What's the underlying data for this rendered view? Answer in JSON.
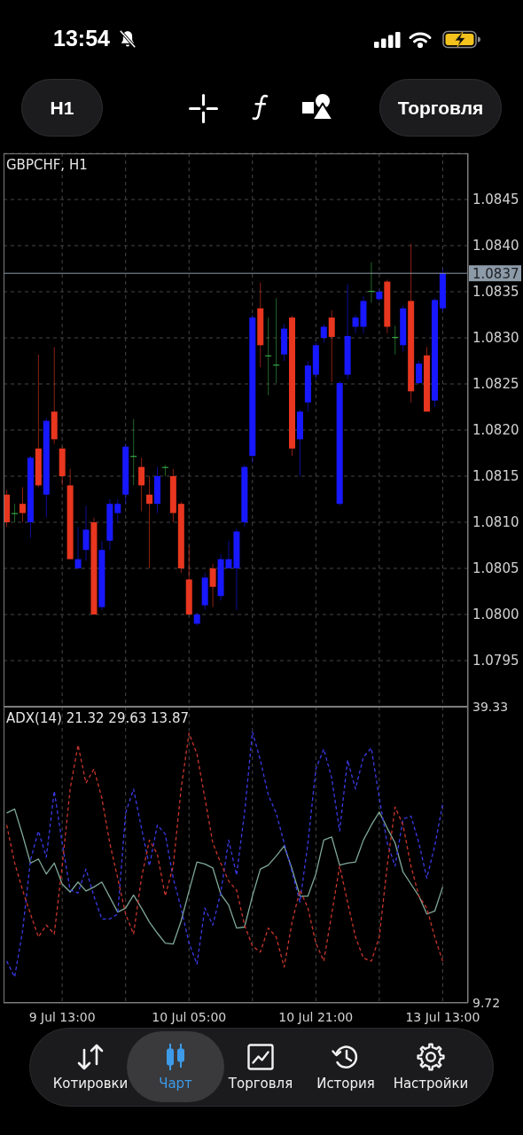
{
  "chart_data": [
    {
      "type": "other",
      "annotations": [
        "13:54",
        "H1",
        "Торговля"
      ]
    },
    {
      "type": "candlestick",
      "title": "GBPCHF, H1",
      "categories": [
        null,
        null,
        null,
        null,
        null,
        null,
        null,
        null,
        null,
        null,
        null,
        null,
        null,
        null,
        null,
        null,
        null,
        null,
        null,
        null,
        null,
        null,
        null,
        null,
        null,
        null,
        null,
        null,
        null,
        null,
        null,
        null,
        null,
        null,
        null,
        null,
        null,
        null,
        null,
        null,
        null,
        null,
        null,
        null,
        null,
        null,
        null,
        null,
        null,
        null,
        null,
        null,
        null,
        null,
        null,
        null
      ],
      "ohlc": [
        [
          1.0813,
          1.08135,
          1.08095,
          1.081
        ],
        [
          1.0811,
          1.0812,
          1.081,
          1.0811
        ],
        [
          1.0812,
          1.08138,
          1.081,
          1.0811
        ],
        [
          1.081,
          1.08172,
          1.08083,
          1.0817
        ],
        [
          1.0818,
          1.08282,
          1.08138,
          1.0814
        ],
        [
          1.0813,
          1.08213,
          1.08105,
          1.0821
        ],
        [
          1.0822,
          1.0829,
          1.08185,
          1.0819
        ],
        [
          1.0818,
          1.08182,
          1.0814,
          1.0815
        ],
        [
          1.0814,
          1.08158,
          1.0806,
          1.0806
        ],
        [
          1.0805,
          1.08095,
          1.0805,
          1.0806
        ],
        [
          1.0807,
          1.08118,
          1.08058,
          1.08092
        ],
        [
          1.081,
          1.08105,
          1.08,
          1.08
        ],
        [
          1.08008,
          1.0808,
          1.08005,
          1.0807
        ],
        [
          1.0808,
          1.08125,
          1.0807,
          1.0812
        ],
        [
          1.0811,
          1.08125,
          1.081,
          1.0812
        ],
        [
          1.0813,
          1.08185,
          1.0812,
          1.08182
        ],
        [
          1.08172,
          1.08212,
          1.0814,
          1.08172
        ],
        [
          1.0816,
          1.0817,
          1.08112,
          1.0814
        ],
        [
          1.0813,
          1.0815,
          1.0805,
          1.0812
        ],
        [
          1.0812,
          1.0816,
          1.0811,
          1.0815
        ],
        [
          1.0816,
          1.08162,
          1.0815,
          1.0816
        ],
        [
          1.0815,
          1.08158,
          1.081,
          1.0811
        ],
        [
          1.0812,
          1.08122,
          1.08045,
          1.0805
        ],
        [
          1.08038,
          1.08075,
          1.08,
          1.08
        ],
        [
          1.0799,
          1.08002,
          1.07988,
          1.08
        ],
        [
          1.0801,
          1.08045,
          1.08005,
          1.0804
        ],
        [
          1.0805,
          1.08055,
          1.08008,
          1.0803
        ],
        [
          1.0802,
          1.08065,
          1.08015,
          1.0806
        ],
        [
          1.0805,
          1.0808,
          1.0805,
          1.0806
        ],
        [
          1.0805,
          1.08093,
          1.08005,
          1.0809
        ],
        [
          1.081,
          1.08162,
          1.08095,
          1.0816
        ],
        [
          1.08172,
          1.08325,
          1.08165,
          1.08322
        ],
        [
          1.08332,
          1.0836,
          1.08268,
          1.08292
        ],
        [
          1.08281,
          1.08322,
          1.08238,
          1.08281
        ],
        [
          1.08271,
          1.08343,
          1.08251,
          1.08271
        ],
        [
          1.08282,
          1.08315,
          1.08275,
          1.0831
        ],
        [
          1.08322,
          1.08324,
          1.08172,
          1.0818
        ],
        [
          1.0819,
          1.08222,
          1.0815,
          1.0822
        ],
        [
          1.0823,
          1.08275,
          1.0822,
          1.0827
        ],
        [
          1.0826,
          1.08295,
          1.08255,
          1.08292
        ],
        [
          1.083,
          1.08315,
          1.08295,
          1.08312
        ],
        [
          1.08322,
          1.0833,
          1.08252,
          1.08301
        ],
        [
          1.0812,
          1.08253,
          1.08118,
          1.08251
        ],
        [
          1.0826,
          1.08358,
          1.08255,
          1.08302
        ],
        [
          1.08312,
          1.08325,
          1.08305,
          1.08322
        ],
        [
          1.08312,
          1.08345,
          1.08305,
          1.0834
        ],
        [
          1.08351,
          1.08382,
          1.08338,
          1.08351
        ],
        [
          1.08342,
          1.08352,
          1.0834,
          1.0835
        ],
        [
          1.08361,
          1.08363,
          1.08305,
          1.08312
        ],
        [
          1.08301,
          1.08313,
          1.08282,
          1.08301
        ],
        [
          1.08292,
          1.08335,
          1.08285,
          1.08332
        ],
        [
          1.0834,
          1.08402,
          1.0823,
          1.08242
        ],
        [
          1.08251,
          1.08275,
          1.0825,
          1.08272
        ],
        [
          1.08281,
          1.0829,
          1.0822,
          1.0822
        ],
        [
          1.08232,
          1.08343,
          1.08225,
          1.08341
        ],
        [
          1.08332,
          1.08375,
          1.08328,
          1.0837
        ]
      ],
      "colors": [
        "#e8361f",
        "#35a845",
        "#e8361f",
        "#1818ff",
        "#e8361f",
        "#1818ff",
        "#e8361f",
        "#e8361f",
        "#e8361f",
        "#1818ff",
        "#1818ff",
        "#e8361f",
        "#1818ff",
        "#1818ff",
        "#1818ff",
        "#1818ff",
        "#35a845",
        "#e8361f",
        "#e8361f",
        "#1818ff",
        "#35a845",
        "#e8361f",
        "#e8361f",
        "#e8361f",
        "#1818ff",
        "#1818ff",
        "#e8361f",
        "#1818ff",
        "#1818ff",
        "#1818ff",
        "#1818ff",
        "#1818ff",
        "#e8361f",
        "#35a845",
        "#35a845",
        "#1818ff",
        "#e8361f",
        "#1818ff",
        "#1818ff",
        "#1818ff",
        "#1818ff",
        "#e8361f",
        "#1818ff",
        "#1818ff",
        "#1818ff",
        "#1818ff",
        "#35a845",
        "#1818ff",
        "#e8361f",
        "#35a845",
        "#1818ff",
        "#e8361f",
        "#1818ff",
        "#e8361f",
        "#1818ff",
        "#1818ff"
      ],
      "ylim": [
        1.079,
        1.085
      ],
      "yticks": [
        1.0795,
        {
          "value": 1.08,
          "label": "1.0800"
        },
        1.0805,
        {
          "value": 1.081,
          "label": "1.0810"
        },
        1.0815,
        {
          "value": 1.082,
          "label": "1.0820"
        },
        1.0825,
        {
          "value": 1.083,
          "label": "1.0830"
        },
        1.0835,
        {
          "value": 1.084,
          "label": "1.0840"
        },
        1.0845
      ],
      "grid": true,
      "tick_labels": "y",
      "ref_lines": [
        {
          "axis": "y",
          "value": 1.0837,
          "label": "1.0837",
          "color": "#8d9aa7"
        }
      ]
    },
    {
      "type": "line",
      "title": "ADX(14) 21.32 29.63 13.87",
      "categories": [
        null,
        null,
        null,
        null,
        null,
        null,
        null,
        "9 Jul 13:00",
        null,
        null,
        null,
        null,
        null,
        null,
        null,
        null,
        null,
        null,
        null,
        null,
        null,
        null,
        null,
        "10 Jul 05:00",
        null,
        null,
        null,
        null,
        null,
        null,
        null,
        null,
        null,
        null,
        null,
        null,
        null,
        null,
        null,
        "10 Jul 21:00",
        null,
        null,
        null,
        null,
        null,
        null,
        null,
        null,
        null,
        null,
        null,
        null,
        null,
        null,
        null,
        "13 Jul 13:00"
      ],
      "series": [
        {
          "color": "#7fa898",
          "values": [
            28.7,
            29.1,
            26.5,
            23.7,
            24.1,
            22.6,
            23.7,
            21.6,
            20.8,
            21.8,
            20.9,
            21.3,
            21.8,
            20.3,
            18.8,
            19.2,
            20.5,
            19.2,
            17.8,
            16.7,
            15.7,
            15.6,
            17.9,
            20.9,
            23.8,
            23.6,
            23.2,
            20.6,
            19.5,
            17.2,
            17.3,
            20.4,
            23.1,
            23.5,
            24.4,
            25.4,
            23.1,
            20.4,
            20.4,
            22.6,
            26.0,
            26.3,
            23.5,
            23.7,
            23.8,
            26.0,
            27.5,
            28.8,
            27.2,
            25.7,
            22.8,
            21.6,
            20.4,
            18.6,
            18.9,
            21.3
          ]
        },
        {
          "color": "#3a3ae6",
          "line_style": "dashed",
          "values": [
            13.9,
            12.3,
            16.9,
            24.0,
            26.9,
            24.3,
            30.9,
            25.7,
            21.0,
            20.7,
            23.1,
            20.4,
            18.1,
            18.1,
            18.6,
            28.7,
            31.1,
            27.2,
            23.4,
            27.5,
            26.6,
            22.2,
            19.2,
            15.7,
            13.6,
            19.2,
            17.5,
            20.7,
            26.0,
            22.5,
            28.7,
            36.8,
            34.0,
            30.5,
            28.7,
            25.7,
            22.8,
            19.8,
            25.7,
            33.1,
            35.1,
            32.2,
            26.9,
            34.0,
            31.1,
            34.3,
            35.2,
            30.2,
            25.7,
            23.4,
            28.1,
            28.4,
            25.7,
            22.2,
            25.4,
            29.6
          ]
        },
        {
          "color": "#c8352c",
          "line_style": "dashed",
          "values": [
            27.5,
            23.7,
            21.0,
            18.6,
            16.3,
            17.5,
            16.6,
            23.4,
            31.1,
            35.5,
            31.7,
            33.1,
            30.2,
            25.7,
            22.2,
            18.6,
            16.6,
            22.2,
            26.0,
            24.6,
            20.4,
            23.4,
            31.1,
            36.7,
            34.6,
            30.2,
            25.7,
            23.7,
            21.9,
            21.0,
            17.5,
            15.4,
            14.8,
            17.2,
            16.3,
            13.3,
            17.8,
            21.0,
            19.2,
            15.7,
            13.9,
            18.6,
            23.4,
            19.8,
            16.3,
            14.2,
            13.9,
            16.3,
            23.4,
            29.3,
            27.5,
            23.4,
            20.4,
            19.2,
            16.3,
            13.9
          ]
        }
      ],
      "ylim": [
        9.72,
        39.33
      ],
      "yticks": [
        9.72,
        39.33
      ],
      "grid": "x"
    },
    {
      "type": "other",
      "annotations": [
        "Котировки",
        "Чарт",
        "Торговля",
        "История",
        "Настройки"
      ]
    }
  ]
}
